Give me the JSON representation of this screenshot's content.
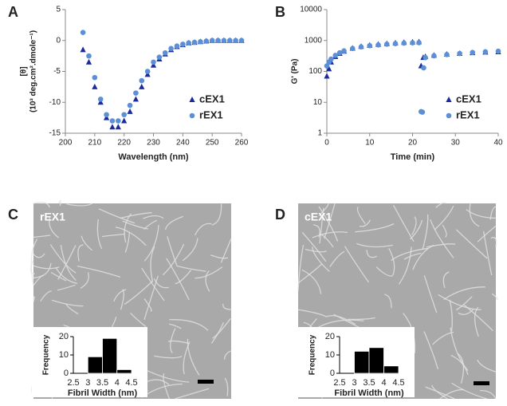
{
  "chart_data": [
    {
      "type": "scatter",
      "panel": "A",
      "xlabel": "Wavelength (nm)",
      "ylabel": [
        "[θ]",
        "(10³ deg.cm².dmole⁻¹)"
      ],
      "xlim": [
        200,
        260
      ],
      "xticks": [
        200,
        210,
        220,
        230,
        240,
        250,
        260
      ],
      "ylim": [
        -15,
        5
      ],
      "yticks": [
        -15,
        -10,
        -5,
        0,
        5
      ],
      "legend": "lower right",
      "series": [
        {
          "name": "cEX1",
          "color": "#1c2a9c",
          "marker": "triangle",
          "x": [
            206,
            208,
            210,
            212,
            214,
            216,
            218,
            220,
            222,
            224,
            226,
            228,
            230,
            232,
            234,
            236,
            238,
            240,
            242,
            244,
            246,
            248,
            250,
            252,
            254,
            256,
            258,
            260
          ],
          "values": [
            -1.5,
            -3.5,
            -7.5,
            -10,
            -12.5,
            -14,
            -14,
            -13,
            -11.5,
            -9.5,
            -7.5,
            -5.5,
            -4,
            -3,
            -2.2,
            -1.5,
            -1,
            -0.7,
            -0.4,
            -0.3,
            -0.2,
            -0.1,
            0,
            0,
            0,
            0,
            0,
            0
          ]
        },
        {
          "name": "rEX1",
          "color": "#5b8fd6",
          "marker": "circle",
          "x": [
            206,
            208,
            210,
            212,
            214,
            216,
            218,
            220,
            222,
            224,
            226,
            228,
            230,
            232,
            234,
            236,
            238,
            240,
            242,
            244,
            246,
            248,
            250,
            252,
            254,
            256,
            258,
            260
          ],
          "values": [
            1.3,
            -2.5,
            -6,
            -9.5,
            -12,
            -13,
            -13,
            -12,
            -10.5,
            -8.5,
            -6.5,
            -5,
            -3.5,
            -2.7,
            -2,
            -1.3,
            -0.9,
            -0.6,
            -0.4,
            -0.3,
            -0.2,
            -0.1,
            0,
            0,
            0,
            0,
            0,
            0
          ]
        }
      ]
    },
    {
      "type": "scatter",
      "panel": "B",
      "xlabel": "Time (min)",
      "ylabel": [
        "G' (Pa)"
      ],
      "log_y": true,
      "xlim": [
        0,
        40
      ],
      "xticks": [
        0,
        10,
        20,
        30,
        40
      ],
      "ylim": [
        1,
        10000
      ],
      "yticks": [
        1,
        10,
        100,
        1000,
        10000
      ],
      "legend": "lower right",
      "series": [
        {
          "name": "cEX1",
          "color": "#1c2a9c",
          "marker": "triangle",
          "x": [
            0,
            0.5,
            1,
            2,
            3,
            4,
            6,
            8,
            10,
            12,
            14,
            16,
            18,
            20,
            21.5,
            22,
            22.5,
            23,
            25,
            28,
            31,
            34,
            37,
            40
          ],
          "values": [
            70,
            120,
            200,
            300,
            380,
            450,
            560,
            640,
            700,
            750,
            790,
            830,
            860,
            890,
            900,
            150,
            280,
            300,
            330,
            360,
            380,
            400,
            420,
            430
          ]
        },
        {
          "name": "rEX1",
          "color": "#5b8fd6",
          "marker": "circle",
          "x": [
            0,
            0.5,
            1,
            2,
            3,
            4,
            6,
            8,
            10,
            12,
            14,
            16,
            18,
            20,
            21.5,
            22,
            22.3,
            22.6,
            23,
            25,
            28,
            31,
            34,
            37,
            40
          ],
          "values": [
            150,
            200,
            250,
            330,
            400,
            460,
            550,
            620,
            680,
            720,
            760,
            790,
            820,
            840,
            850,
            5,
            4.8,
            130,
            280,
            320,
            350,
            380,
            410,
            430,
            450
          ]
        }
      ]
    },
    {
      "type": "histogram",
      "panel": "C",
      "image_label": "rEX1",
      "xlabel": "Fibril Width (nm)",
      "ylabel": [
        "Frequency"
      ],
      "bins": [
        3,
        3.5,
        4,
        4.5
      ],
      "values": [
        9,
        19,
        2
      ],
      "color": "#000000",
      "xlim": [
        2.5,
        4.5
      ],
      "xticks": [
        2.5,
        3,
        3.5,
        4,
        4.5
      ],
      "ylim": [
        0,
        20
      ],
      "yticks": [
        0,
        10,
        20
      ]
    },
    {
      "type": "histogram",
      "panel": "D",
      "image_label": "cEX1",
      "xlabel": "Fibril Width (nm)",
      "ylabel": [
        "Frequency"
      ],
      "bins": [
        3,
        3.5,
        4,
        4.5
      ],
      "values": [
        12,
        14,
        4
      ],
      "color": "#000000",
      "xlim": [
        2.5,
        4.5
      ],
      "xticks": [
        2.5,
        3,
        3.5,
        4,
        4.5
      ],
      "ylim": [
        0,
        20
      ],
      "yticks": [
        0,
        10,
        20
      ]
    }
  ]
}
